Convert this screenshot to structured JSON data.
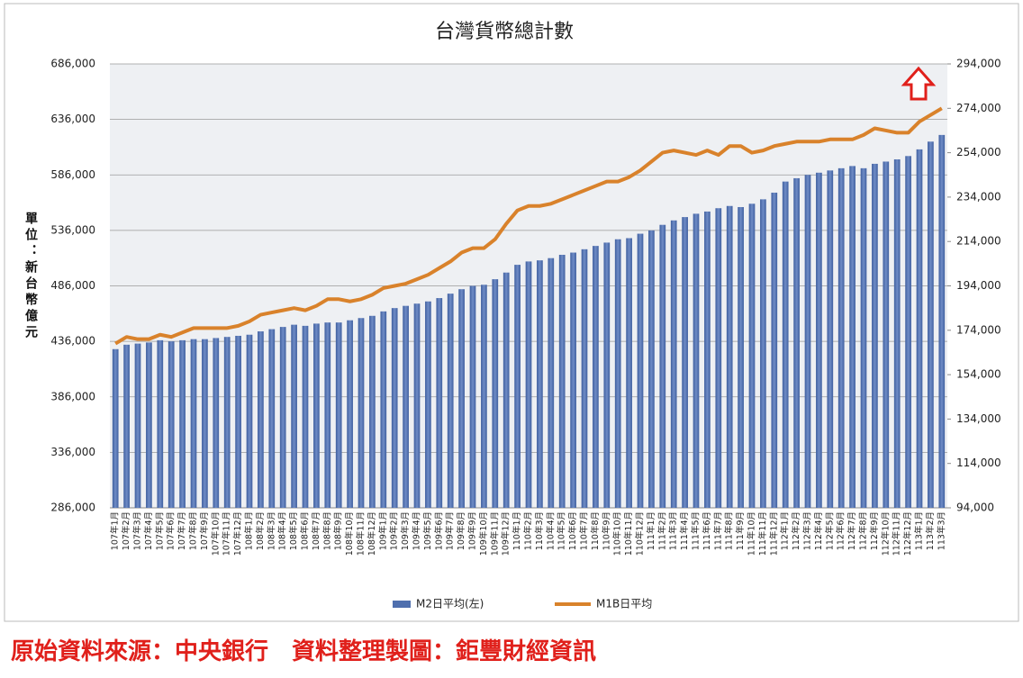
{
  "chart_data": {
    "type": "bar-line",
    "title": "台灣貨幣總計數",
    "y_label": "單位：新台幣億元",
    "source": "原始資料來源：中央銀行　資料整理製圖：鉅豐財經資訊",
    "categories": [
      "107年1月",
      "107年2月",
      "107年3月",
      "107年4月",
      "107年5月",
      "107年6月",
      "107年7月",
      "107年8月",
      "107年9月",
      "107年10月",
      "107年11月",
      "107年12月",
      "108年1月",
      "108年2月",
      "108年3月",
      "108年4月",
      "108年5月",
      "108年6月",
      "108年7月",
      "108年8月",
      "108年9月",
      "108年10月",
      "108年11月",
      "108年12月",
      "109年1月",
      "109年2月",
      "109年3月",
      "109年4月",
      "109年5月",
      "109年6月",
      "109年7月",
      "109年8月",
      "109年9月",
      "109年10月",
      "109年11月",
      "109年12月",
      "110年1月",
      "110年2月",
      "110年3月",
      "110年4月",
      "110年5月",
      "110年6月",
      "110年7月",
      "110年8月",
      "110年9月",
      "110年10月",
      "110年11月",
      "110年12月",
      "111年1月",
      "111年2月",
      "111年3月",
      "111年4月",
      "111年5月",
      "111年6月",
      "111年7月",
      "111年8月",
      "111年9月",
      "111年10月",
      "111年11月",
      "111年12月",
      "112年1月",
      "112年2月",
      "112年3月",
      "112年4月",
      "112年5月",
      "112年6月",
      "112年7月",
      "112年8月",
      "112年9月",
      "112年10月",
      "112年11月",
      "112年12月",
      "113年1月",
      "113年2月",
      "113年3月"
    ],
    "series": [
      {
        "name": "M2日平均(左)",
        "color": "#4f6fae",
        "type": "bar",
        "axis": "y",
        "values": [
          429000,
          433000,
          434000,
          435000,
          437000,
          436000,
          437000,
          438000,
          438000,
          439000,
          440000,
          441000,
          442000,
          445000,
          447000,
          449000,
          451000,
          450000,
          452000,
          453000,
          453000,
          455000,
          457000,
          459000,
          463000,
          466000,
          468000,
          470000,
          472000,
          475000,
          479000,
          483000,
          486000,
          487000,
          492000,
          498000,
          505000,
          508000,
          509000,
          511000,
          514000,
          516000,
          519000,
          522000,
          525000,
          528000,
          529000,
          533000,
          536000,
          541000,
          545000,
          548000,
          551000,
          553000,
          556000,
          558000,
          557000,
          560000,
          564000,
          570000,
          580000,
          583000,
          586000,
          588000,
          590000,
          592000,
          594000,
          592000,
          596000,
          598000,
          600000,
          603000,
          609000,
          616000,
          622000
        ]
      },
      {
        "name": "M1B日平均",
        "color": "#d9822b",
        "type": "line",
        "axis": "y2",
        "values": [
          168000,
          171000,
          170000,
          170000,
          172000,
          171000,
          173000,
          175000,
          175000,
          175000,
          175000,
          176000,
          178000,
          181000,
          182000,
          183000,
          184000,
          183000,
          185000,
          188000,
          188000,
          187000,
          188000,
          190000,
          193000,
          194000,
          195000,
          197000,
          199000,
          202000,
          205000,
          209000,
          211000,
          211000,
          215000,
          222000,
          228000,
          230000,
          230000,
          231000,
          233000,
          235000,
          237000,
          239000,
          241000,
          241000,
          243000,
          246000,
          250000,
          254000,
          255000,
          254000,
          253000,
          255000,
          253000,
          257000,
          257000,
          254000,
          255000,
          257000,
          258000,
          259000,
          259000,
          259000,
          260000,
          260000,
          260000,
          262000,
          265000,
          264000,
          263000,
          263000,
          268000,
          271000,
          274000
        ]
      }
    ],
    "ylim": [
      286000,
      686000
    ],
    "yticks": [
      {
        "value": 286000,
        "label": "286,000"
      },
      {
        "value": 336000,
        "label": "336,000"
      },
      {
        "value": 386000,
        "label": "386,000"
      },
      {
        "value": 436000,
        "label": "436,000"
      },
      {
        "value": 486000,
        "label": "486,000"
      },
      {
        "value": 536000,
        "label": "536,000"
      },
      {
        "value": 586000,
        "label": "586,000"
      },
      {
        "value": 636000,
        "label": "636,000"
      },
      {
        "value": 686000,
        "label": "686,000"
      }
    ],
    "y2lim": [
      94000,
      294000
    ],
    "y2ticks": [
      {
        "value": 94000,
        "label": "94,000"
      },
      {
        "value": 114000,
        "label": "114,000"
      },
      {
        "value": 134000,
        "label": "134,000"
      },
      {
        "value": 154000,
        "label": "154,000"
      },
      {
        "value": 174000,
        "label": "174,000"
      },
      {
        "value": 194000,
        "label": "194,000"
      },
      {
        "value": 214000,
        "label": "214,000"
      },
      {
        "value": 234000,
        "label": "234,000"
      },
      {
        "value": 254000,
        "label": "254,000"
      },
      {
        "value": 274000,
        "label": "274,000"
      },
      {
        "value": 294000,
        "label": "294,000"
      }
    ],
    "grid": true,
    "legend": "bottom"
  }
}
